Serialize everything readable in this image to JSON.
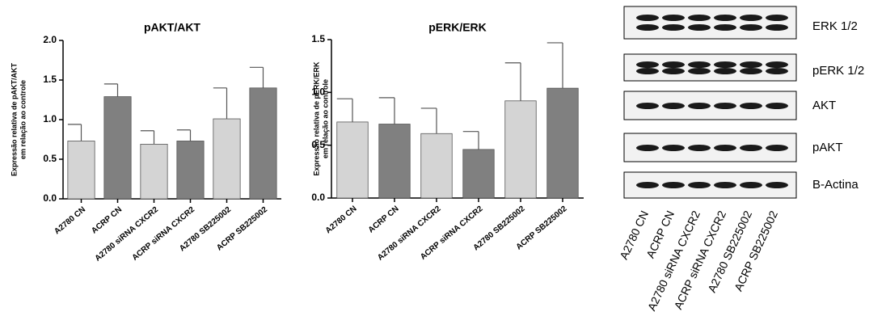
{
  "chart_data": [
    {
      "type": "bar",
      "title": "pAKT/AKT",
      "ylabel": [
        "Expressão relativa de pAKT/AKT",
        "em relação ao controle"
      ],
      "categories": [
        "A2780  CN",
        "ACRP CN",
        "A2780 siRNA CXCR2",
        "ACRP siRNA CXCR2",
        "A2780 SB225002",
        "ACRP SB225002"
      ],
      "values": [
        0.73,
        1.29,
        0.69,
        0.73,
        1.01,
        1.4
      ],
      "errors": [
        0.21,
        0.16,
        0.17,
        0.14,
        0.39,
        0.26
      ],
      "colors": [
        "#d4d4d4",
        "#808080",
        "#d4d4d4",
        "#808080",
        "#d4d4d4",
        "#808080"
      ],
      "ylim": [
        0,
        2
      ],
      "yticks": [
        {
          "value": 0,
          "label": "0.0"
        },
        0.5,
        {
          "value": 1,
          "label": "1.0"
        },
        1.5,
        {
          "value": 2,
          "label": "2.0"
        }
      ]
    },
    {
      "type": "bar",
      "title": "pERK/ERK",
      "ylabel": [
        "Expressão relativa de pERK/ERK",
        "em relação ao controle"
      ],
      "categories": [
        "A2780  CN",
        "ACRP CN",
        "A2780 siRNA CXCR2",
        "ACRP siRNA CXCR2",
        "A2780 SB225002",
        "ACRP SB225002"
      ],
      "values": [
        0.72,
        0.7,
        0.61,
        0.46,
        0.92,
        1.04
      ],
      "errors": [
        0.22,
        0.25,
        0.24,
        0.17,
        0.36,
        0.43
      ],
      "colors": [
        "#d4d4d4",
        "#808080",
        "#d4d4d4",
        "#808080",
        "#d4d4d4",
        "#808080"
      ],
      "ylim": [
        0,
        1.5
      ],
      "yticks": [
        {
          "value": 0,
          "label": "0.0"
        },
        0.5,
        {
          "value": 1,
          "label": "1.0"
        },
        1.5
      ]
    }
  ],
  "blot": {
    "bands": [
      "ERK 1/2",
      "pERK 1/2",
      "AKT",
      "pAKT",
      "B-Actina"
    ],
    "lanes": [
      "A2780 CN",
      "ACRP CN",
      "A2780 siRNA CXCR2",
      "ACRP siRNA CXCR2",
      "A2780 SB225002",
      "ACRP SB225002"
    ]
  }
}
